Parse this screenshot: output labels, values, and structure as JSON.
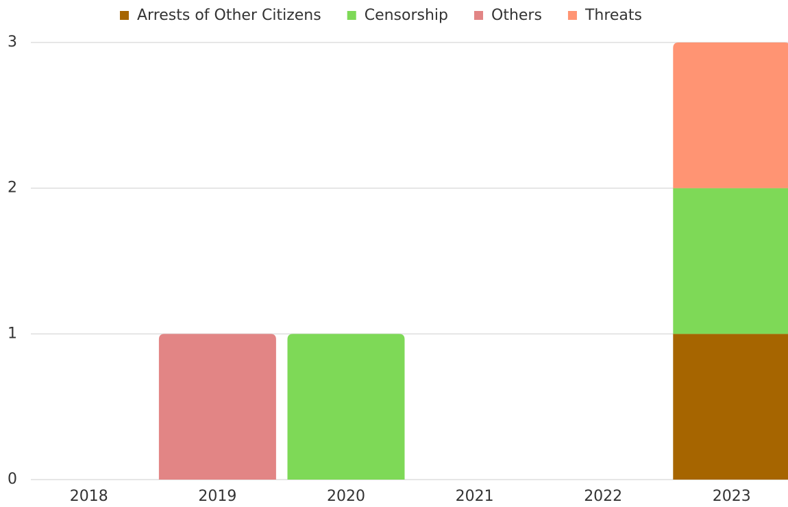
{
  "chart_data": {
    "type": "stacked-bar",
    "categories": [
      "2018",
      "2019",
      "2020",
      "2021",
      "2022",
      "2023"
    ],
    "series": [
      {
        "name": "Arrests of Other Citizens",
        "color": "#a66500",
        "values": [
          0,
          0,
          0,
          0,
          0,
          1
        ]
      },
      {
        "name": "Censorship",
        "color": "#7ed957",
        "values": [
          0,
          0,
          1,
          0,
          0,
          1
        ]
      },
      {
        "name": "Others",
        "color": "#e28585",
        "values": [
          0,
          1,
          0,
          0,
          0,
          0
        ]
      },
      {
        "name": "Threats",
        "color": "#ff9473",
        "values": [
          0,
          0,
          0,
          0,
          0,
          1
        ]
      }
    ],
    "ylim": [
      0,
      3
    ],
    "yticks": [
      0,
      1,
      2,
      3
    ],
    "grid": true,
    "legend": "top"
  }
}
